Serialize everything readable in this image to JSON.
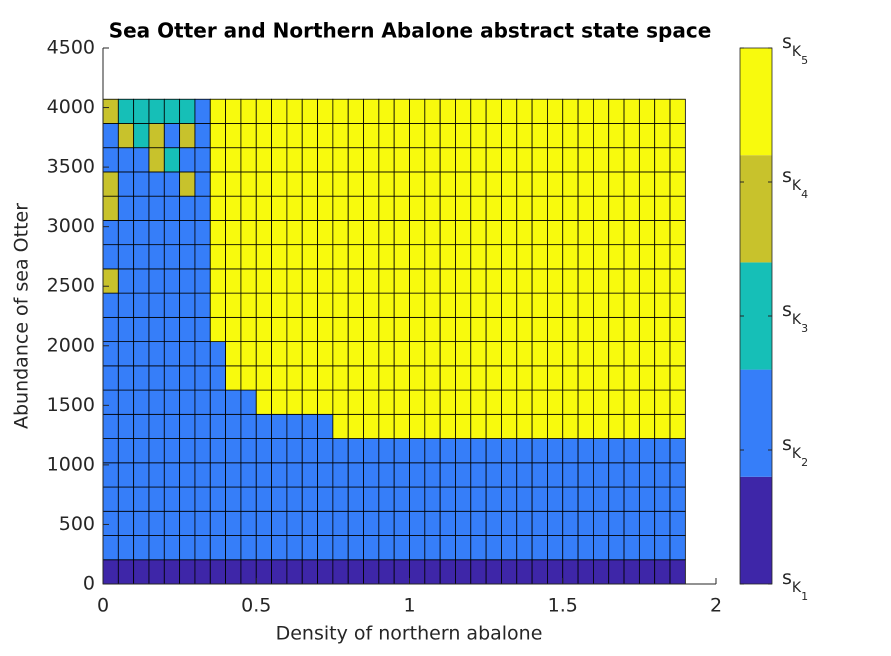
{
  "chart_data": {
    "type": "heatmap",
    "title": "Sea Otter and Northern Abalone abstract state space",
    "x_label": "Density of northern abalone",
    "y_label": "Abundance of sea Otter",
    "xlim": [
      0,
      2
    ],
    "xticks": [
      0,
      0.5,
      1,
      1.5,
      2
    ],
    "ylim": [
      0,
      4500
    ],
    "yticks": [
      0,
      500,
      1000,
      1500,
      2000,
      2500,
      3000,
      3500,
      4000,
      4500
    ],
    "x_edges": [
      0,
      0.05,
      0.1,
      0.15,
      0.2,
      0.25,
      0.3,
      0.35,
      0.4,
      0.45,
      0.5,
      0.55,
      0.6,
      0.65,
      0.7,
      0.75,
      0.8,
      0.85,
      0.9,
      0.95,
      1,
      1.05,
      1.1,
      1.15,
      1.2,
      1.25,
      1.3,
      1.35,
      1.4,
      1.45,
      1.5,
      1.55,
      1.6,
      1.65,
      1.7,
      1.75,
      1.8,
      1.85,
      1.9
    ],
    "y_edges": [
      0,
      203.5,
      407,
      610.5,
      814,
      1017.5,
      1221,
      1424.5,
      1628,
      1831.5,
      2035,
      2238.5,
      2442,
      2645.5,
      2849,
      3052.5,
      3256,
      3459.5,
      3663,
      3866.5,
      4070
    ],
    "z": [
      [
        1,
        1,
        1,
        1,
        1,
        1,
        1,
        1,
        1,
        1,
        1,
        1,
        1,
        1,
        1,
        1,
        1,
        1,
        1,
        1,
        1,
        1,
        1,
        1,
        1,
        1,
        1,
        1,
        1,
        1,
        1,
        1,
        1,
        1,
        1,
        1,
        1,
        1
      ],
      [
        2,
        2,
        2,
        2,
        2,
        2,
        2,
        2,
        2,
        2,
        2,
        2,
        2,
        2,
        2,
        2,
        2,
        2,
        2,
        2,
        2,
        2,
        2,
        2,
        2,
        2,
        2,
        2,
        2,
        2,
        2,
        2,
        2,
        2,
        2,
        2,
        2,
        2
      ],
      [
        2,
        2,
        2,
        2,
        2,
        2,
        2,
        2,
        2,
        2,
        2,
        2,
        2,
        2,
        2,
        2,
        2,
        2,
        2,
        2,
        2,
        2,
        2,
        2,
        2,
        2,
        2,
        2,
        2,
        2,
        2,
        2,
        2,
        2,
        2,
        2,
        2,
        2
      ],
      [
        2,
        2,
        2,
        2,
        2,
        2,
        2,
        2,
        2,
        2,
        2,
        2,
        2,
        2,
        2,
        2,
        2,
        2,
        2,
        2,
        2,
        2,
        2,
        2,
        2,
        2,
        2,
        2,
        2,
        2,
        2,
        2,
        2,
        2,
        2,
        2,
        2,
        2
      ],
      [
        2,
        2,
        2,
        2,
        2,
        2,
        2,
        2,
        2,
        2,
        2,
        2,
        2,
        2,
        2,
        2,
        2,
        2,
        2,
        2,
        2,
        2,
        2,
        2,
        2,
        2,
        2,
        2,
        2,
        2,
        2,
        2,
        2,
        2,
        2,
        2,
        2,
        2
      ],
      [
        2,
        2,
        2,
        2,
        2,
        2,
        2,
        2,
        2,
        2,
        2,
        2,
        2,
        2,
        2,
        2,
        2,
        2,
        2,
        2,
        2,
        2,
        2,
        2,
        2,
        2,
        2,
        2,
        2,
        2,
        2,
        2,
        2,
        2,
        2,
        2,
        2,
        2
      ],
      [
        2,
        2,
        2,
        2,
        2,
        2,
        2,
        2,
        2,
        2,
        2,
        2,
        2,
        2,
        2,
        5,
        5,
        5,
        5,
        5,
        5,
        5,
        5,
        5,
        5,
        5,
        5,
        5,
        5,
        5,
        5,
        5,
        5,
        5,
        5,
        5,
        5,
        5
      ],
      [
        2,
        2,
        2,
        2,
        2,
        2,
        2,
        2,
        2,
        2,
        5,
        5,
        5,
        5,
        5,
        5,
        5,
        5,
        5,
        5,
        5,
        5,
        5,
        5,
        5,
        5,
        5,
        5,
        5,
        5,
        5,
        5,
        5,
        5,
        5,
        5,
        5,
        5
      ],
      [
        2,
        2,
        2,
        2,
        2,
        2,
        2,
        2,
        5,
        5,
        5,
        5,
        5,
        5,
        5,
        5,
        5,
        5,
        5,
        5,
        5,
        5,
        5,
        5,
        5,
        5,
        5,
        5,
        5,
        5,
        5,
        5,
        5,
        5,
        5,
        5,
        5,
        5
      ],
      [
        2,
        2,
        2,
        2,
        2,
        2,
        2,
        2,
        5,
        5,
        5,
        5,
        5,
        5,
        5,
        5,
        5,
        5,
        5,
        5,
        5,
        5,
        5,
        5,
        5,
        5,
        5,
        5,
        5,
        5,
        5,
        5,
        5,
        5,
        5,
        5,
        5,
        5
      ],
      [
        2,
        2,
        2,
        2,
        2,
        2,
        2,
        5,
        5,
        5,
        5,
        5,
        5,
        5,
        5,
        5,
        5,
        5,
        5,
        5,
        5,
        5,
        5,
        5,
        5,
        5,
        5,
        5,
        5,
        5,
        5,
        5,
        5,
        5,
        5,
        5,
        5,
        5
      ],
      [
        2,
        2,
        2,
        2,
        2,
        2,
        2,
        5,
        5,
        5,
        5,
        5,
        5,
        5,
        5,
        5,
        5,
        5,
        5,
        5,
        5,
        5,
        5,
        5,
        5,
        5,
        5,
        5,
        5,
        5,
        5,
        5,
        5,
        5,
        5,
        5,
        5,
        5
      ],
      [
        4,
        2,
        2,
        2,
        2,
        2,
        2,
        5,
        5,
        5,
        5,
        5,
        5,
        5,
        5,
        5,
        5,
        5,
        5,
        5,
        5,
        5,
        5,
        5,
        5,
        5,
        5,
        5,
        5,
        5,
        5,
        5,
        5,
        5,
        5,
        5,
        5,
        5
      ],
      [
        2,
        2,
        2,
        2,
        2,
        2,
        2,
        5,
        5,
        5,
        5,
        5,
        5,
        5,
        5,
        5,
        5,
        5,
        5,
        5,
        5,
        5,
        5,
        5,
        5,
        5,
        5,
        5,
        5,
        5,
        5,
        5,
        5,
        5,
        5,
        5,
        5,
        5
      ],
      [
        2,
        2,
        2,
        2,
        2,
        2,
        2,
        5,
        5,
        5,
        5,
        5,
        5,
        5,
        5,
        5,
        5,
        5,
        5,
        5,
        5,
        5,
        5,
        5,
        5,
        5,
        5,
        5,
        5,
        5,
        5,
        5,
        5,
        5,
        5,
        5,
        5,
        5
      ],
      [
        4,
        2,
        2,
        2,
        2,
        2,
        2,
        5,
        5,
        5,
        5,
        5,
        5,
        5,
        5,
        5,
        5,
        5,
        5,
        5,
        5,
        5,
        5,
        5,
        5,
        5,
        5,
        5,
        5,
        5,
        5,
        5,
        5,
        5,
        5,
        5,
        5,
        5
      ],
      [
        4,
        2,
        2,
        2,
        2,
        4,
        2,
        5,
        5,
        5,
        5,
        5,
        5,
        5,
        5,
        5,
        5,
        5,
        5,
        5,
        5,
        5,
        5,
        5,
        5,
        5,
        5,
        5,
        5,
        5,
        5,
        5,
        5,
        5,
        5,
        5,
        5,
        5
      ],
      [
        2,
        2,
        2,
        4,
        3,
        2,
        2,
        5,
        5,
        5,
        5,
        5,
        5,
        5,
        5,
        5,
        5,
        5,
        5,
        5,
        5,
        5,
        5,
        5,
        5,
        5,
        5,
        5,
        5,
        5,
        5,
        5,
        5,
        5,
        5,
        5,
        5,
        5
      ],
      [
        2,
        4,
        3,
        4,
        2,
        4,
        2,
        5,
        5,
        5,
        5,
        5,
        5,
        5,
        5,
        5,
        5,
        5,
        5,
        5,
        5,
        5,
        5,
        5,
        5,
        5,
        5,
        5,
        5,
        5,
        5,
        5,
        5,
        5,
        5,
        5,
        5,
        5
      ],
      [
        4,
        3,
        3,
        3,
        3,
        3,
        2,
        5,
        5,
        5,
        5,
        5,
        5,
        5,
        5,
        5,
        5,
        5,
        5,
        5,
        5,
        5,
        5,
        5,
        5,
        5,
        5,
        5,
        5,
        5,
        5,
        5,
        5,
        5,
        5,
        5,
        5,
        5
      ]
    ],
    "colormap": [
      "#3e26a8",
      "#367ef9",
      "#16bfb7",
      "#c8c22c",
      "#f8fa0d"
    ],
    "colorbar": {
      "clim": [
        1,
        5
      ],
      "ticks": [
        {
          "value": 1,
          "label": "sK1"
        },
        {
          "value": 2,
          "label": "sK2"
        },
        {
          "value": 3,
          "label": "sK3"
        },
        {
          "value": 4,
          "label": "sK4"
        },
        {
          "value": 5,
          "label": "sK5"
        }
      ]
    }
  }
}
